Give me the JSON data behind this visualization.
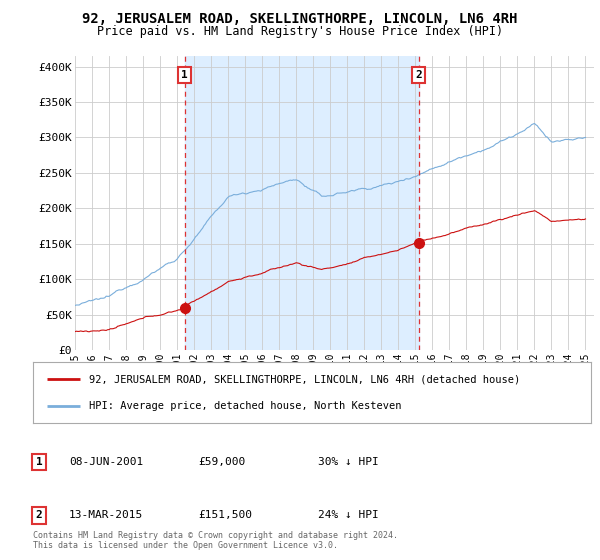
{
  "title": "92, JERUSALEM ROAD, SKELLINGTHORPE, LINCOLN, LN6 4RH",
  "subtitle": "Price paid vs. HM Land Registry's House Price Index (HPI)",
  "ylabel_ticks": [
    "£0",
    "£50K",
    "£100K",
    "£150K",
    "£200K",
    "£250K",
    "£300K",
    "£350K",
    "£400K"
  ],
  "ytick_vals": [
    0,
    50000,
    100000,
    150000,
    200000,
    250000,
    300000,
    350000,
    400000
  ],
  "ylim": [
    0,
    415000
  ],
  "xlim_start": 1995.0,
  "xlim_end": 2025.5,
  "marker1_x": 2001.44,
  "marker1_y": 59000,
  "marker2_x": 2015.2,
  "marker2_y": 151500,
  "hpi_color": "#7aaedb",
  "price_color": "#cc1111",
  "vline_color": "#dd3333",
  "fill_color": "#ddeeff",
  "grid_color": "#cccccc",
  "bg_color": "#ffffff",
  "legend_label_price": "92, JERUSALEM ROAD, SKELLINGTHORPE, LINCOLN, LN6 4RH (detached house)",
  "legend_label_hpi": "HPI: Average price, detached house, North Kesteven",
  "annotation1_date": "08-JUN-2001",
  "annotation1_price": "£59,000",
  "annotation1_hpi": "30% ↓ HPI",
  "annotation2_date": "13-MAR-2015",
  "annotation2_price": "£151,500",
  "annotation2_hpi": "24% ↓ HPI",
  "footer": "Contains HM Land Registry data © Crown copyright and database right 2024.\nThis data is licensed under the Open Government Licence v3.0.",
  "xticks": [
    1995,
    1996,
    1997,
    1998,
    1999,
    2000,
    2001,
    2002,
    2003,
    2004,
    2005,
    2006,
    2007,
    2008,
    2009,
    2010,
    2011,
    2012,
    2013,
    2014,
    2015,
    2016,
    2017,
    2018,
    2019,
    2020,
    2021,
    2022,
    2023,
    2024,
    2025
  ]
}
